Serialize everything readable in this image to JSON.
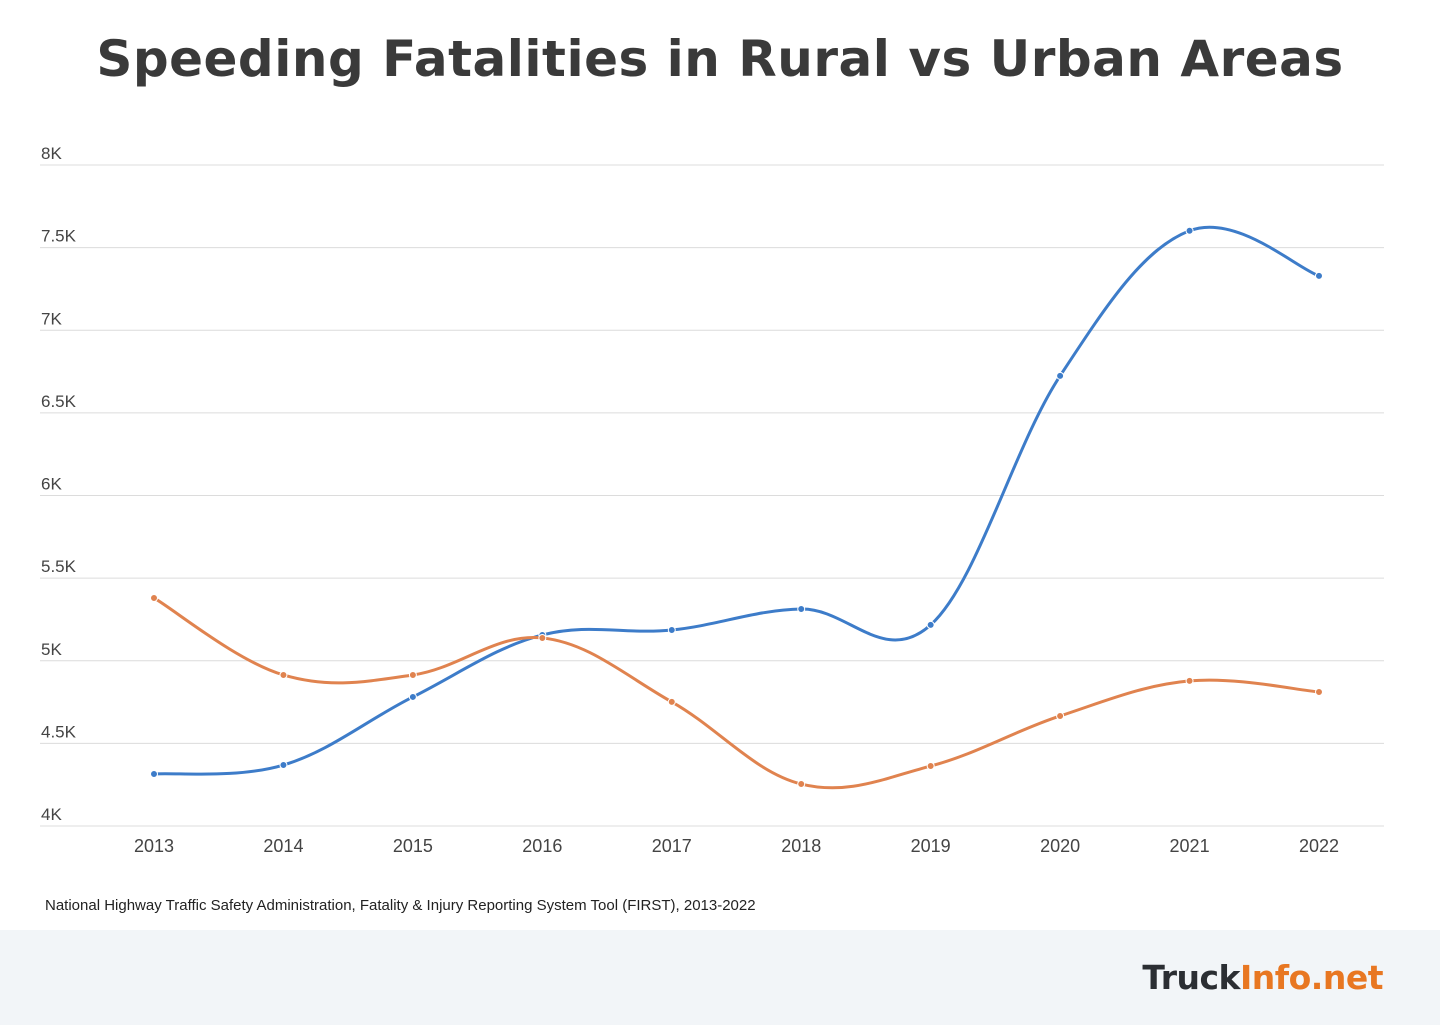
{
  "chart_data": {
    "type": "line",
    "title": "Speeding Fatalities in Rural vs Urban Areas",
    "xlabel": "",
    "ylabel": "",
    "categories": [
      "2013",
      "2014",
      "2015",
      "2016",
      "2017",
      "2018",
      "2019",
      "2020",
      "2021",
      "2022"
    ],
    "ylim": [
      4000,
      8000
    ],
    "yticks": [
      {
        "value": 4000,
        "label": "4K"
      },
      {
        "value": 4500,
        "label": "4.5K"
      },
      {
        "value": 5000,
        "label": "5K"
      },
      {
        "value": 5500,
        "label": "5.5K"
      },
      {
        "value": 6000,
        "label": "6K"
      },
      {
        "value": 6500,
        "label": "6.5K"
      },
      {
        "value": 7000,
        "label": "7K"
      },
      {
        "value": 7500,
        "label": "7.5K"
      },
      {
        "value": 8000,
        "label": "8K"
      }
    ],
    "grid": true,
    "smooth": true,
    "series": [
      {
        "color": "#3d7cc9",
        "values": [
          4315,
          4369,
          4781,
          5156,
          5186,
          5313,
          5217,
          6724,
          7602,
          7329
        ]
      },
      {
        "color": "#e0834f",
        "values": [
          5380,
          4914,
          4914,
          5138,
          4751,
          4254,
          4363,
          4666,
          4878,
          4811
        ]
      }
    ]
  },
  "source": "National Highway Traffic Safety Administration, Fatality & Injury Reporting System Tool (FIRST), 2013-2022",
  "logo": {
    "part1": "Truck",
    "part2": "Info.net",
    "colors": [
      "#2b2e33",
      "#e87722"
    ]
  }
}
